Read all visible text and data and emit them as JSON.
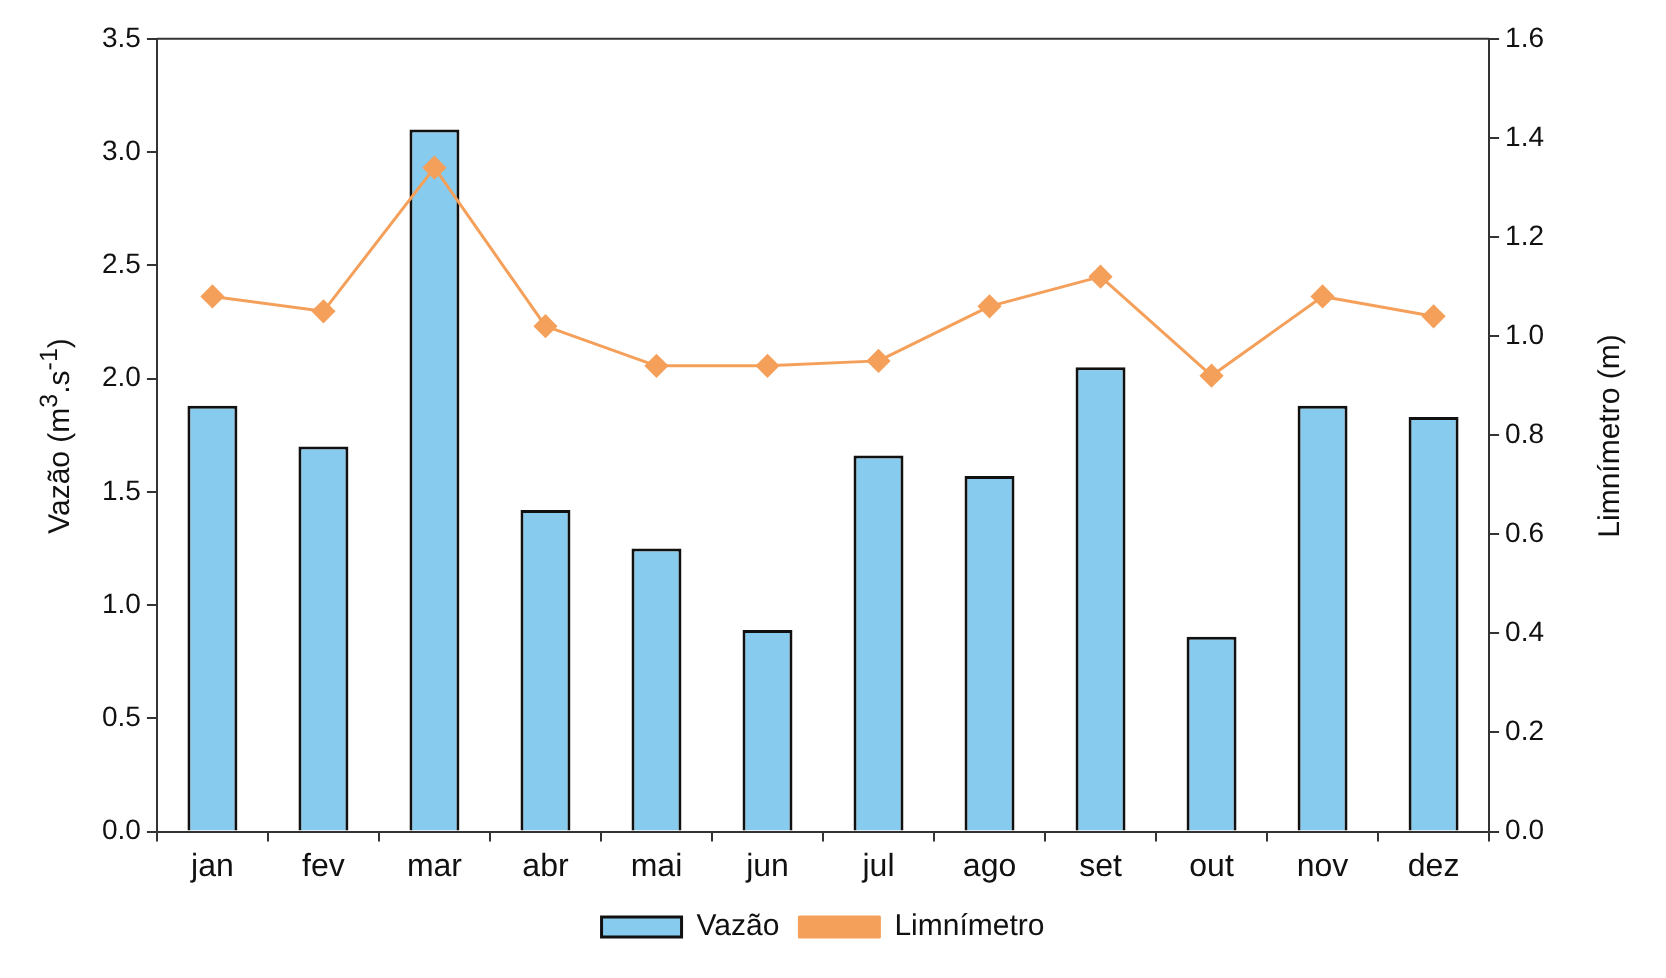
{
  "chart_data": {
    "type": "bar",
    "categories": [
      "jan",
      "fev",
      "mar",
      "abr",
      "mai",
      "jun",
      "jul",
      "ago",
      "set",
      "out",
      "nov",
      "dez"
    ],
    "series": [
      {
        "name": "Vazão",
        "color": "#87cbee",
        "values": [
          1.88,
          1.7,
          3.1,
          1.42,
          1.25,
          0.89,
          1.66,
          1.57,
          2.05,
          0.86,
          1.88,
          1.83
        ]
      },
      {
        "name": "Limnímetro",
        "type": "line",
        "axis": "y2",
        "color": "#f5a05a",
        "marker": "diamond",
        "values": [
          1.08,
          1.05,
          1.34,
          1.02,
          0.94,
          0.94,
          0.95,
          1.06,
          1.12,
          0.92,
          1.08,
          1.04
        ]
      }
    ],
    "ylabel": "Vazão (m$^{3}$.s$^{-1}$)",
    "y2label": "Limnímetro (m)",
    "ylim": [
      0,
      3.5
    ],
    "yticks": [
      {
        "value": 0,
        "label": "0.0"
      },
      0.5,
      {
        "value": 1,
        "label": "1.0"
      },
      1.5,
      {
        "value": 2,
        "label": "2.0"
      },
      2.5,
      {
        "value": 3,
        "label": "3.0"
      },
      3.5
    ],
    "y2lim": [
      0,
      1.6
    ],
    "y2ticks": [
      {
        "value": 0,
        "label": "0.0"
      },
      0.2,
      0.4,
      0.6,
      0.8,
      {
        "value": 1,
        "label": "1.0"
      },
      1.2,
      1.4,
      1.6
    ],
    "grid": false,
    "legend": "bottom"
  }
}
